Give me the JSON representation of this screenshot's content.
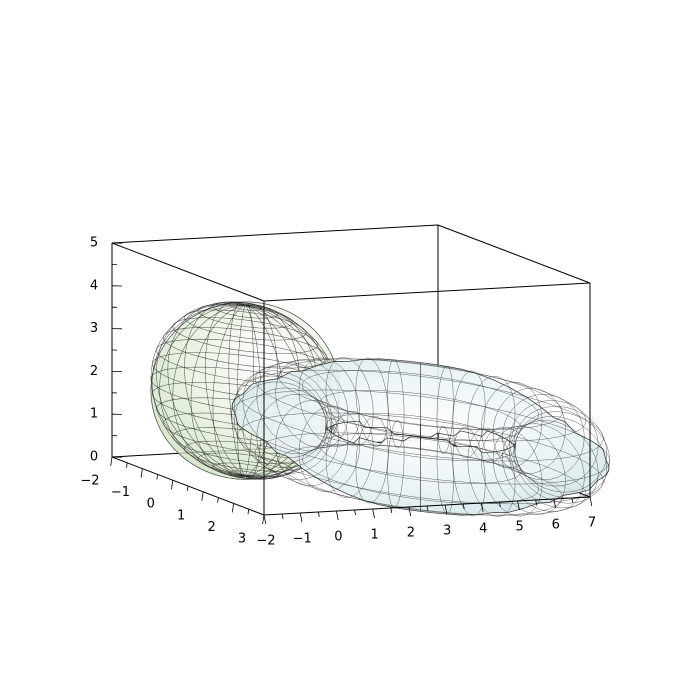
{
  "chart_data": {
    "type": "surface3d",
    "title": "",
    "axes": {
      "x": {
        "label": "",
        "range": [
          -2,
          3
        ],
        "ticks": [
          -2,
          -1,
          0,
          1,
          2,
          3
        ]
      },
      "y": {
        "label": "",
        "range": [
          -2,
          7
        ],
        "ticks": [
          7,
          6,
          5,
          4,
          3,
          2,
          1,
          0,
          -1,
          -2
        ]
      },
      "z": {
        "label": "",
        "range": [
          0,
          5
        ],
        "ticks": [
          0,
          1,
          2,
          3,
          4,
          5
        ]
      }
    },
    "box": true,
    "grid_on_surfaces": true,
    "surfaces": [
      {
        "shape": "sphere",
        "center": [
          0,
          0,
          2
        ],
        "radius": 2,
        "color": "#cfe3c0",
        "opacity": 0.55
      },
      {
        "shape": "torus",
        "center": [
          1,
          4,
          1
        ],
        "major_radius": 3,
        "minor_radius": 1,
        "color": "#dcecef",
        "opacity": 0.75
      }
    ]
  }
}
